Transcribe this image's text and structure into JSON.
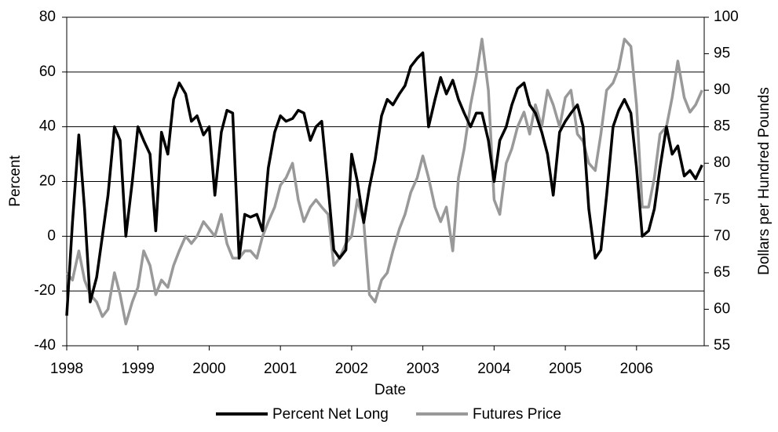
{
  "chart_data": {
    "type": "line",
    "x_label": "Date",
    "y_label": "Percent",
    "y2_label": "Dollars per Hundred Pounds",
    "x": [
      1998,
      1998.08,
      1998.17,
      1998.25,
      1998.33,
      1998.42,
      1998.5,
      1998.58,
      1998.67,
      1998.75,
      1998.83,
      1998.92,
      1999,
      1999.08,
      1999.17,
      1999.25,
      1999.33,
      1999.42,
      1999.5,
      1999.58,
      1999.67,
      1999.75,
      1999.83,
      1999.92,
      2000,
      2000.08,
      2000.17,
      2000.25,
      2000.33,
      2000.42,
      2000.5,
      2000.58,
      2000.67,
      2000.75,
      2000.83,
      2000.92,
      2001,
      2001.08,
      2001.17,
      2001.25,
      2001.33,
      2001.42,
      2001.5,
      2001.58,
      2001.67,
      2001.75,
      2001.83,
      2001.92,
      2002,
      2002.08,
      2002.17,
      2002.25,
      2002.33,
      2002.42,
      2002.5,
      2002.58,
      2002.67,
      2002.75,
      2002.83,
      2002.92,
      2003,
      2003.08,
      2003.17,
      2003.25,
      2003.33,
      2003.42,
      2003.5,
      2003.58,
      2003.67,
      2003.75,
      2003.83,
      2003.92,
      2004,
      2004.08,
      2004.17,
      2004.25,
      2004.33,
      2004.42,
      2004.5,
      2004.58,
      2004.67,
      2004.75,
      2004.83,
      2004.92,
      2005,
      2005.08,
      2005.17,
      2005.25,
      2005.33,
      2005.42,
      2005.5,
      2005.58,
      2005.67,
      2005.75,
      2005.83,
      2005.92,
      2006,
      2006.08,
      2006.17,
      2006.25,
      2006.33,
      2006.42,
      2006.5,
      2006.58,
      2006.67,
      2006.75,
      2006.83,
      2006.92
    ],
    "series": [
      {
        "name": "Percent Net Long",
        "color": "#000000",
        "values": [
          -29,
          5,
          37,
          10,
          -24,
          -15,
          0,
          15,
          40,
          35,
          0,
          20,
          40,
          35,
          30,
          2,
          38,
          30,
          50,
          56,
          52,
          42,
          44,
          37,
          40,
          15,
          38,
          46,
          45,
          -8,
          8,
          7,
          8,
          2,
          25,
          38,
          44,
          42,
          43,
          46,
          45,
          35,
          40,
          42,
          18,
          -5,
          -8,
          -5,
          30,
          20,
          5,
          18,
          28,
          44,
          50,
          48,
          52,
          55,
          62,
          65,
          67,
          40,
          50,
          58,
          52,
          57,
          50,
          45,
          40,
          45,
          45,
          35,
          20,
          35,
          40,
          48,
          54,
          56,
          48,
          45,
          38,
          30,
          15,
          38,
          42,
          45,
          48,
          40,
          10,
          -8,
          -5,
          15,
          40,
          46,
          50,
          45,
          25,
          0,
          2,
          10,
          25,
          40,
          30,
          33,
          22,
          24,
          21,
          26
        ]
      },
      {
        "name": "Futures Price",
        "color": "#999999",
        "axis": "y2",
        "values": [
          65,
          64,
          68,
          64,
          62,
          61,
          59,
          60,
          65,
          62,
          58,
          61,
          63,
          68,
          66,
          62,
          64,
          63,
          66,
          68,
          70,
          69,
          70,
          72,
          71,
          70,
          73,
          69,
          67,
          67,
          68,
          68,
          67,
          70,
          72,
          74,
          77,
          78,
          80,
          75,
          72,
          74,
          75,
          74,
          73,
          66,
          67,
          69,
          70,
          75,
          72,
          62,
          61,
          64,
          65,
          68,
          71,
          73,
          76,
          78,
          81,
          78,
          74,
          72,
          74,
          68,
          78,
          82,
          88,
          92,
          97,
          90,
          75,
          73,
          80,
          82,
          85,
          87,
          84,
          88,
          85,
          90,
          88,
          85,
          89,
          90,
          84,
          83,
          80,
          79,
          84,
          90,
          91,
          93,
          97,
          96,
          88,
          74,
          74,
          78,
          84,
          85,
          89,
          94,
          89,
          87,
          88,
          90
        ]
      }
    ],
    "xlim": [
      1998,
      2006.95
    ],
    "xticks": [
      1998,
      1999,
      2000,
      2001,
      2002,
      2003,
      2004,
      2005,
      2006
    ],
    "ylim": [
      -40,
      80
    ],
    "yticks": [
      -40,
      -20,
      0,
      20,
      40,
      60,
      80
    ],
    "y2lim": [
      55,
      100
    ],
    "y2ticks": [
      55,
      60,
      65,
      70,
      75,
      80,
      85,
      90,
      95,
      100
    ],
    "grid": true,
    "legend": "bottom"
  }
}
